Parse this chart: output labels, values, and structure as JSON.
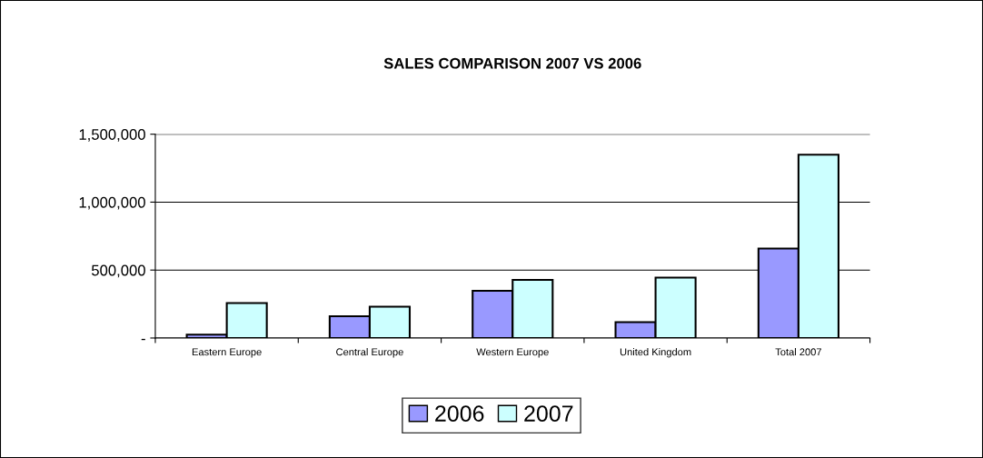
{
  "chart_data": {
    "type": "bar",
    "title": "SALES COMPARISON 2007 VS 2006",
    "categories": [
      "Eastern Europe",
      "Central Europe",
      "Western Europe",
      "United Kingdom",
      "Total 2007"
    ],
    "series": [
      {
        "name": "2006",
        "color": "#9999ff",
        "values": [
          25000,
          160000,
          348000,
          117000,
          658000
        ]
      },
      {
        "name": "2007",
        "color": "#ccffff",
        "values": [
          257000,
          230000,
          428000,
          444000,
          1349000
        ]
      }
    ],
    "ylim": [
      0,
      1500000
    ],
    "yticks": [
      {
        "value": 0,
        "label": "-"
      },
      {
        "value": 500000,
        "label": "500,000"
      },
      {
        "value": 1000000,
        "label": "1,000,000"
      },
      {
        "value": 1500000,
        "label": "1,500,000"
      }
    ],
    "grid": "y",
    "legend": "bottom"
  }
}
